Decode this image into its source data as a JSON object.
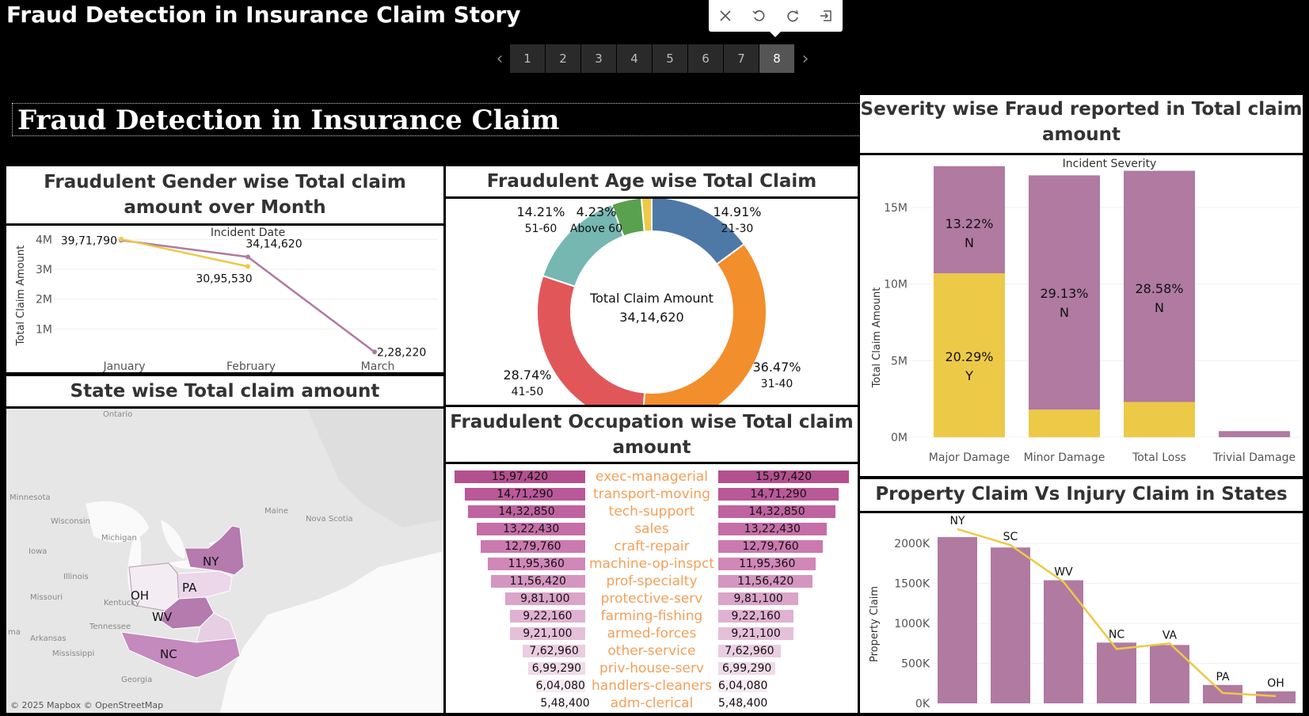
{
  "story": {
    "title": "Fraud Detection in Insurance Claim Story",
    "pages": [
      "1",
      "2",
      "3",
      "4",
      "5",
      "6",
      "7",
      "8"
    ],
    "active_page": "8"
  },
  "toolbar": [
    "close-icon",
    "undo-icon",
    "refresh-icon",
    "exit-icon"
  ],
  "dashboard_title": "Fraud Detection in Insurance Claim",
  "gender_panel": {
    "title": "Fraudulent Gender wise Total claim amount over Month",
    "chart_data": {
      "type": "line",
      "subtitle": "Incident Date",
      "ylabel": "Total Claim Amount",
      "categories": [
        "January",
        "February",
        "March"
      ],
      "yticks": [
        "1M",
        "2M",
        "3M",
        "4M"
      ],
      "ylim": [
        0,
        4300000
      ],
      "series": [
        {
          "color": "#b07aa1",
          "values": [
            3971790,
            3414620,
            228220
          ],
          "labels": [
            "39,71,790",
            "34,14,620",
            "2,28,220"
          ]
        },
        {
          "color": "#edc948",
          "values": [
            4010000,
            3095530,
            null
          ],
          "labels": [
            "",
            "30,95,530",
            ""
          ]
        }
      ]
    }
  },
  "age_panel": {
    "title": "Fraudulent Age wise Total Claim Amount",
    "chart_data": {
      "type": "pie",
      "center_label": "Total Claim Amount",
      "center_value": "34,14,620",
      "slices": [
        {
          "name": "21-30",
          "pct": "14.91%",
          "value": 14.91,
          "color": "#4e79a7"
        },
        {
          "name": "31-40",
          "pct": "36.47%",
          "value": 36.47,
          "color": "#f28e2b"
        },
        {
          "name": "41-50",
          "pct": "28.74%",
          "value": 28.74,
          "color": "#e15759"
        },
        {
          "name": "51-60",
          "pct": "14.21%",
          "value": 14.21,
          "color": "#76b7b2"
        },
        {
          "name": "Above 60",
          "pct": "4.23%",
          "value": 4.23,
          "color": "#59a14f"
        },
        {
          "name": "",
          "pct": "",
          "value": 1.44,
          "color": "#edc948"
        }
      ]
    }
  },
  "severity_panel": {
    "title": "Severity wise Fraud reported in Total claim amount",
    "chart_data": {
      "type": "bar",
      "subtitle": "Incident Severity",
      "ylabel": "Total Claim Amount",
      "categories": [
        "Major Damage",
        "Minor Damage",
        "Total Loss",
        "Trivial Damage"
      ],
      "yticks": [
        "0M",
        "5M",
        "10M",
        "15M"
      ],
      "ylim": [
        0,
        18000000
      ],
      "series": [
        {
          "name": "Y",
          "color": "#edc948",
          "values": [
            10700000,
            1800000,
            2300000,
            0
          ]
        },
        {
          "name": "N",
          "color": "#b07aa1",
          "values": [
            7000000,
            15300000,
            15100000,
            400000
          ]
        }
      ],
      "labels": [
        {
          "pct": "20.29%",
          "flag": "Y"
        },
        {
          "pct": "13.22%",
          "flag": "N"
        },
        {
          "pct": "29.13%",
          "flag": "N"
        },
        {
          "pct": "28.58%",
          "flag": "N"
        }
      ]
    }
  },
  "state_panel": {
    "title": "State wise Total claim amount",
    "attribution": "© 2025 Mapbox © OpenStreetMap",
    "place_labels": [
      "Ontario",
      "Minnesota",
      "Wisconsin",
      "Michigan",
      "Iowa",
      "Illinois",
      "Missouri",
      "Kentucky",
      "Tennessee",
      "Arkansas",
      "Mississippi",
      "Georgia",
      "Maine",
      "Nova Scotia",
      "ma"
    ],
    "states": [
      "NY",
      "PA",
      "OH",
      "WV",
      "NC"
    ]
  },
  "occupation_panel": {
    "title": "Fraudulent Occupation wise Total claim amount",
    "chart_data": {
      "type": "bar",
      "categories": [
        "exec-managerial",
        "transport-moving",
        "tech-support",
        "sales",
        "craft-repair",
        "machine-op-inspct",
        "prof-specialty",
        "protective-serv",
        "farming-fishing",
        "armed-forces",
        "other-service",
        "priv-house-serv",
        "handlers-cleaners",
        "adm-clerical"
      ],
      "values": [
        1597420,
        1471290,
        1432850,
        1322430,
        1279760,
        1195360,
        1156420,
        981100,
        922160,
        921100,
        762960,
        699290,
        604080,
        548400
      ],
      "labels": [
        "15,97,420",
        "14,71,290",
        "14,32,850",
        "13,22,430",
        "12,79,760",
        "11,95,360",
        "11,56,420",
        "9,81,100",
        "9,22,160",
        "9,21,100",
        "7,62,960",
        "6,99,290",
        "6,04,080",
        "5,48,400"
      ]
    }
  },
  "property_panel": {
    "title": "Property Claim Vs Injury Claim in States",
    "chart_data": {
      "type": "bar",
      "ylabel": "Property Claim",
      "categories": [
        "NY",
        "SC",
        "WV",
        "NC",
        "VA",
        "PA",
        "OH"
      ],
      "yticks": [
        "0K",
        "500K",
        "1000K",
        "1500K",
        "2000K"
      ],
      "ylim": [
        0,
        2200000
      ],
      "values": [
        2080000,
        1950000,
        1540000,
        760000,
        730000,
        230000,
        150000
      ],
      "line_values": [
        2180000,
        1980000,
        1520000,
        680000,
        750000,
        130000,
        90000
      ],
      "bar_color": "#b07aa1",
      "line_color": "#edc948"
    }
  }
}
